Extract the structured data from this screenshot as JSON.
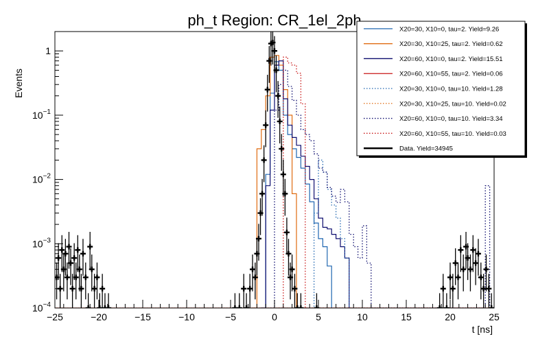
{
  "chart_data": {
    "type": "step-histogram",
    "title": "ph_t Region: CR_1el_2ph",
    "xlabel": "t [ns]",
    "ylabel": "Events",
    "xlim": [
      -25,
      25
    ],
    "ylim": [
      0.0001,
      2
    ],
    "log_y": true,
    "x_ticks": [
      -25,
      -20,
      -15,
      -10,
      -5,
      0,
      5,
      10,
      15,
      20,
      25
    ],
    "x_tick_labels": [
      "−25",
      "−20",
      "−15",
      "−10",
      "−5",
      "0",
      "5",
      "10",
      "15",
      "20",
      "25"
    ],
    "y_ticks": [
      0.0001,
      0.001,
      0.01,
      0.1,
      1
    ],
    "y_tick_labels": [
      {
        "base": "10",
        "exp": "−4"
      },
      {
        "base": "10",
        "exp": "−3"
      },
      {
        "base": "10",
        "exp": "−2"
      },
      {
        "base": "10",
        "exp": "−1"
      },
      {
        "base": "1",
        "exp": ""
      }
    ],
    "legend_position": "top-right",
    "series": [
      {
        "name": "X20=30, X10=0, tau=2. Yield=9.26",
        "color": "#1f66b0",
        "style": "solid",
        "edges": [
          -25,
          -1.5,
          -1,
          -0.5,
          0,
          0.5,
          1,
          1.5,
          2,
          2.5,
          3,
          3.5,
          4,
          4.5,
          5,
          5.5,
          6,
          6.5,
          25
        ],
        "values": [
          0,
          0.0001,
          0.012,
          0.22,
          0.68,
          0.5,
          0.1,
          0.05,
          0.03,
          0.022,
          0.015,
          0.0085,
          0.0045,
          0.0021,
          0.0012,
          0.0009,
          0.00045,
          0,
          0
        ]
      },
      {
        "name": "X20=30, X10=25, tau=2. Yield=0.62",
        "color": "#e06b10",
        "style": "solid",
        "edges": [
          -25,
          -2.5,
          -2,
          -1.5,
          -1,
          -0.5,
          0,
          0.5,
          1,
          1.5,
          2,
          2.5,
          25
        ],
        "values": [
          0,
          0.0001,
          0.03,
          0.06,
          0.2,
          0.8,
          0.85,
          0.6,
          0.25,
          0.1,
          0.006,
          0,
          0
        ]
      },
      {
        "name": "X20=60, X10=0, tau=2. Yield=15.51",
        "color": "#0c0c6e",
        "style": "solid",
        "edges": [
          -25,
          -1.5,
          -1,
          -0.5,
          0,
          0.5,
          1,
          1.5,
          2,
          2.5,
          3,
          3.5,
          4,
          4.5,
          5,
          5.5,
          6,
          6.5,
          7,
          7.5,
          8,
          8.5,
          25
        ],
        "values": [
          0,
          0.0001,
          0.008,
          0.12,
          0.6,
          0.7,
          0.18,
          0.07,
          0.045,
          0.034,
          0.023,
          0.016,
          0.01,
          0.005,
          0.0025,
          0.0018,
          0.0017,
          0.0014,
          0.0012,
          0.0009,
          0.0006,
          0,
          0
        ]
      },
      {
        "name": "X20=60, X10=55, tau=2. Yield=0.06",
        "color": "#c81414",
        "style": "solid",
        "edges": [
          -25,
          25
        ],
        "values": [
          0.0001,
          0
        ]
      },
      {
        "name": "X20=30, X10=0, tau=10. Yield=1.28",
        "color": "#1f66b0",
        "style": "dotted",
        "edges": [
          4.5,
          5,
          5.5,
          6,
          6.5,
          7,
          7.5,
          8,
          8.5,
          25
        ],
        "values": [
          0.003,
          0.02,
          0.013,
          0.007,
          0.004,
          0.0025,
          0.0012,
          0.0006,
          0,
          0
        ]
      },
      {
        "name": "X20=30, X10=25, tau=10. Yield=0.02",
        "color": "#e06b10",
        "style": "dotted",
        "edges": [
          -25,
          25
        ],
        "values": [
          0.0001,
          0
        ]
      },
      {
        "name": "X20=60, X10=0, tau=10. Yield=3.34",
        "color": "#0c0c6e",
        "style": "dotted",
        "edges": [
          -25,
          -0.5,
          0,
          0.5,
          1,
          1.5,
          2,
          2.5,
          3,
          3.5,
          4,
          4.5,
          5,
          5.5,
          6,
          6.5,
          7,
          7.5,
          8,
          8.5,
          9,
          9.5,
          10,
          10.5,
          11,
          24,
          24.5,
          25
        ],
        "values": [
          0,
          0.0001,
          0.12,
          0.3,
          0.5,
          0.28,
          0.17,
          0.1,
          0.06,
          0.05,
          0.04,
          0.025,
          0.015,
          0.013,
          0.0075,
          0.0055,
          0.0044,
          0.007,
          0.0045,
          0.0014,
          0.0009,
          0.0006,
          0.0019,
          0.0005,
          0.0001,
          0.008,
          0.0001
        ]
      },
      {
        "name": "X20=60, X10=55, tau=10. Yield=0.03",
        "color": "#c81414",
        "style": "dotted",
        "edges": [
          -25,
          0.5,
          1,
          1.5,
          2,
          2.5,
          3,
          3.5,
          25
        ],
        "values": [
          0,
          0.0001,
          0.8,
          0.65,
          0.6,
          0.45,
          0.15,
          0.0001,
          0
        ]
      },
      {
        "name": "Data. Yield=34945",
        "color": "#000000",
        "style": "points",
        "points": [
          [
            -24.8,
            0.0003
          ],
          [
            -24.6,
            0.0006
          ],
          [
            -24.4,
            0.0002
          ],
          [
            -24.2,
            0.0008
          ],
          [
            -24.0,
            0.0004
          ],
          [
            -23.8,
            0.0007
          ],
          [
            -23.6,
            0.0003
          ],
          [
            -23.4,
            0.0009
          ],
          [
            -23.2,
            0.0005
          ],
          [
            -23.0,
            0.0002
          ],
          [
            -22.8,
            0.0006
          ],
          [
            -22.6,
            0.0003
          ],
          [
            -22.4,
            0.0008
          ],
          [
            -22.2,
            0.0004
          ],
          [
            -22.0,
            0.0002
          ],
          [
            -21.8,
            0.0007
          ],
          [
            -21.5,
            0.0003
          ],
          [
            -21.2,
            0.0001
          ],
          [
            -21.0,
            0.0009
          ],
          [
            -20.8,
            0.0004
          ],
          [
            -20.5,
            0.0002
          ],
          [
            -20.2,
            0.0003
          ],
          [
            -19.9,
            0.0001
          ],
          [
            -19.6,
            0.0002
          ],
          [
            -19.3,
            0.0001
          ],
          [
            -18.9,
            0.0001
          ],
          [
            -4.5,
            0.0001
          ],
          [
            -4.0,
            0.0001
          ],
          [
            -3.5,
            0.0002
          ],
          [
            -3.2,
            0.0001
          ],
          [
            -2.8,
            0.0002
          ],
          [
            -2.5,
            0.0004
          ],
          [
            -2.2,
            0.0003
          ],
          [
            -2.0,
            0.0007
          ],
          [
            -1.8,
            0.0012
          ],
          [
            -1.6,
            0.003
          ],
          [
            -1.4,
            0.006
          ],
          [
            -1.2,
            0.02
          ],
          [
            -1.0,
            0.07
          ],
          [
            -0.8,
            0.25
          ],
          [
            -0.6,
            0.7
          ],
          [
            -0.4,
            1.3
          ],
          [
            -0.2,
            1.35
          ],
          [
            0.0,
            1.0
          ],
          [
            0.2,
            0.5
          ],
          [
            0.4,
            0.2
          ],
          [
            0.6,
            0.08
          ],
          [
            0.8,
            0.03
          ],
          [
            1.0,
            0.012
          ],
          [
            1.2,
            0.006
          ],
          [
            1.4,
            0.0015
          ],
          [
            1.6,
            0.0007
          ],
          [
            1.8,
            0.0003
          ],
          [
            2.0,
            0.0004
          ],
          [
            2.3,
            0.0002
          ],
          [
            2.6,
            0.0001
          ],
          [
            3.0,
            0.0001
          ],
          [
            4.8,
            0.0001
          ],
          [
            18.8,
            0.0001
          ],
          [
            19.2,
            0.0002
          ],
          [
            19.6,
            0.0001
          ],
          [
            20.0,
            0.0003
          ],
          [
            20.3,
            0.0002
          ],
          [
            20.6,
            0.0005
          ],
          [
            20.9,
            0.0003
          ],
          [
            21.2,
            0.0008
          ],
          [
            21.5,
            0.0004
          ],
          [
            21.8,
            0.0009
          ],
          [
            22.0,
            0.0006
          ],
          [
            22.3,
            0.0004
          ],
          [
            22.6,
            0.0008
          ],
          [
            22.9,
            0.0005
          ],
          [
            23.2,
            0.0007
          ],
          [
            23.5,
            0.0003
          ],
          [
            23.8,
            0.0002
          ],
          [
            24.1,
            0.0004
          ],
          [
            24.4,
            0.0002
          ],
          [
            24.7,
            0.0001
          ]
        ]
      }
    ]
  }
}
